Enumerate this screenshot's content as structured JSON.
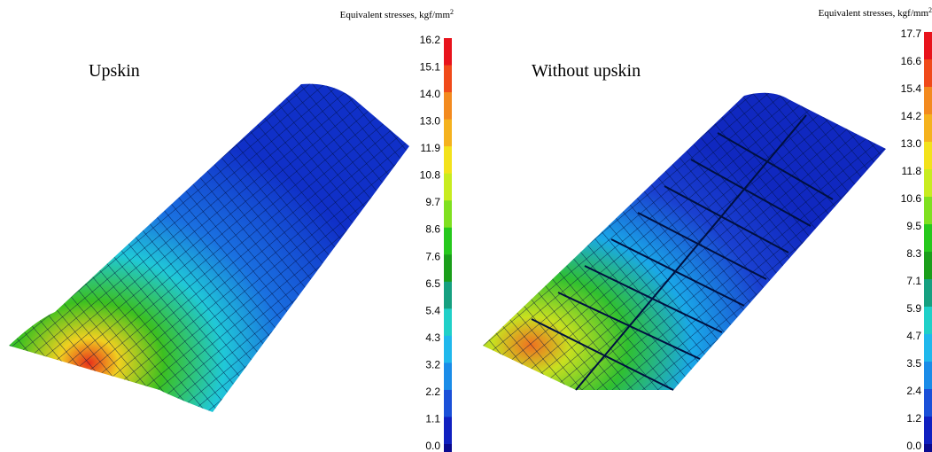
{
  "panels": [
    {
      "label": "Upskin",
      "colorbar": {
        "title": "Equivalent stresses, kgf/mm",
        "title_sup": "2",
        "ticks": [
          "16.2",
          "15.1",
          "14.0",
          "13.0",
          "11.9",
          "10.8",
          "9.7",
          "8.6",
          "7.6",
          "6.5",
          "5.4",
          "4.3",
          "3.2",
          "2.2",
          "1.1",
          "0.0"
        ]
      }
    },
    {
      "label": "Without upskin",
      "colorbar": {
        "title": "Equivalent stresses, kgf/mm",
        "title_sup": "2",
        "ticks": [
          "17.7",
          "16.6",
          "15.4",
          "14.2",
          "13.0",
          "11.8",
          "10.6",
          "9.5",
          "8.3",
          "7.1",
          "5.9",
          "4.7",
          "3.5",
          "2.4",
          "1.2",
          "0.0"
        ]
      }
    }
  ]
}
